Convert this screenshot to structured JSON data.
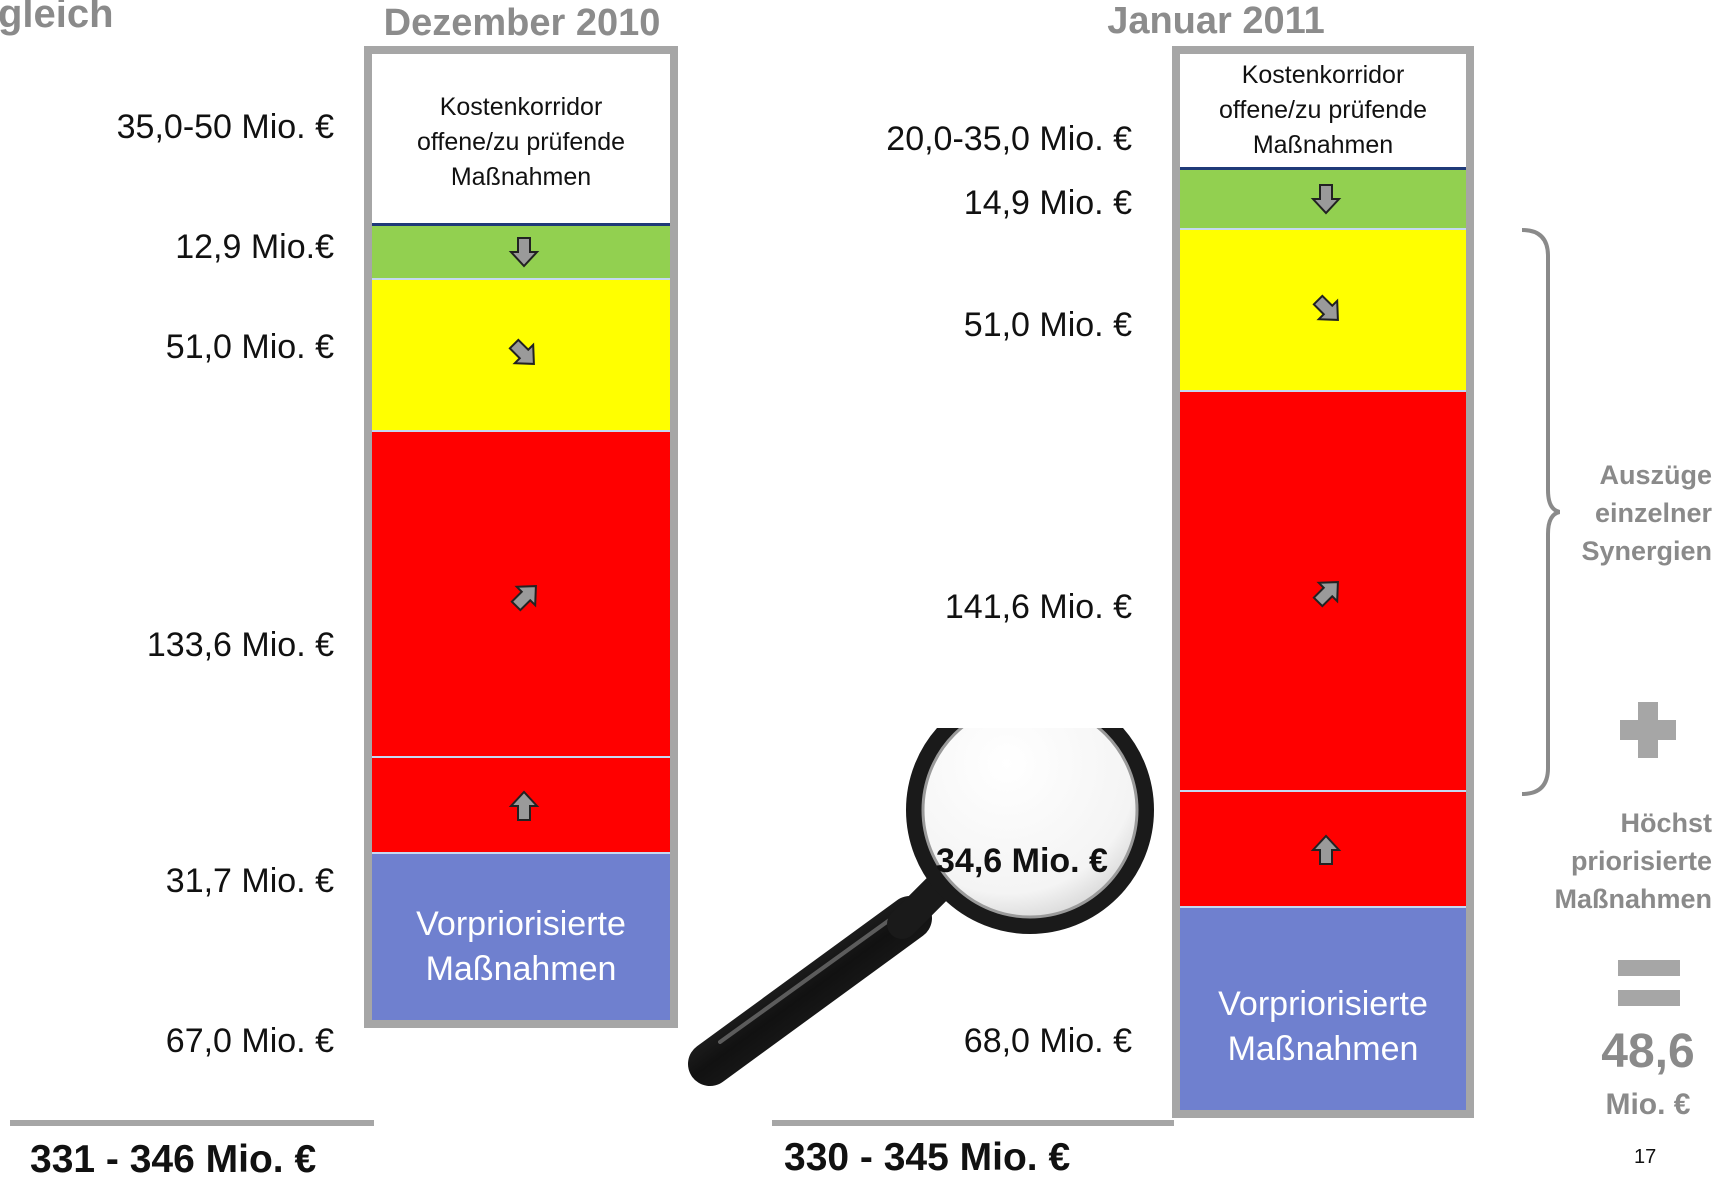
{
  "header": {
    "title_fragment": "gleich"
  },
  "columns": [
    {
      "id": "dec2010",
      "heading": "Dezember 2010",
      "corridor_text": [
        "Kostenkorridor",
        "offene/zu prüfende",
        "Maßnahmen"
      ],
      "labels": {
        "corridor": "35,0-50 Mio. €",
        "green": "12,9 Mio.€",
        "yellow": "51,0 Mio. €",
        "red_big": "133,6 Mio. €",
        "red_small": "31,7 Mio. €",
        "blue": "67,0 Mio. €"
      },
      "blue_text": [
        "Vorpriorisierte",
        "Maßnahmen"
      ],
      "total": "331 - 346 Mio. €"
    },
    {
      "id": "jan2011",
      "heading": "Januar 2011",
      "corridor_text": [
        "Kostenkorridor",
        "offene/zu prüfende",
        "Maßnahmen"
      ],
      "labels": {
        "corridor": "20,0-35,0 Mio. €",
        "green": "14,9 Mio. €",
        "yellow": "51,0 Mio. €",
        "red_big": "141,6 Mio. €",
        "red_small": "34,6 Mio. €",
        "blue": "68,0 Mio. €"
      },
      "blue_text": [
        "Vorpriorisierte",
        "Maßnahmen"
      ],
      "total": "330 - 345 Mio. €"
    }
  ],
  "sidebar": {
    "bracket_text": [
      "Auszüge",
      "einzelner",
      "Synergien"
    ],
    "plus_symbol": "+",
    "priority_text": [
      "Höchst",
      "priorisierte",
      "Maßnahmen"
    ],
    "equals_symbol": "=",
    "result_value": "48,6",
    "result_unit": "Mio. €"
  },
  "page_number": "17",
  "colors": {
    "frame": "#a6a6a6",
    "green": "#92d050",
    "yellow": "#ffff00",
    "red": "#ff0000",
    "blue": "#6f80cf",
    "muted_text": "#8a8a8a"
  }
}
